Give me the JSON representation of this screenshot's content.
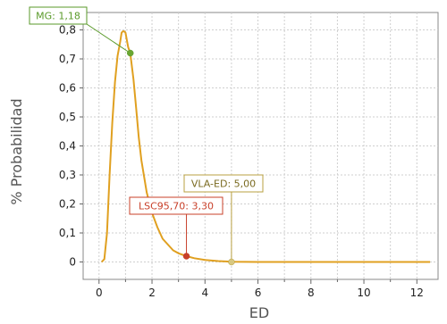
{
  "chart_data": {
    "type": "line",
    "title": "",
    "xlabel": "ED",
    "ylabel": "% Probabilidad",
    "xlim": [
      -0.6,
      12.8
    ],
    "ylim": [
      -0.06,
      0.86
    ],
    "x_ticks": [
      0,
      2,
      4,
      6,
      8,
      10,
      12
    ],
    "y_ticks": [
      0,
      0.1,
      0.2,
      0.3,
      0.4,
      0.5,
      0.6,
      0.7,
      0.8
    ],
    "y_tick_labels": [
      "0",
      "0,1",
      "0,2",
      "0,3",
      "0,4",
      "0,5",
      "0,6",
      "0,7",
      "0,8"
    ],
    "grid": true,
    "legend": "none",
    "series": [
      {
        "x": [
          0.1,
          0.2,
          0.3,
          0.4,
          0.5,
          0.6,
          0.7,
          0.8,
          0.85,
          0.9,
          0.95,
          1.0,
          1.05,
          1.1,
          1.18,
          1.3,
          1.4,
          1.5,
          1.6,
          1.8,
          2.0,
          2.2,
          2.4,
          2.6,
          2.8,
          3.0,
          3.3,
          3.6,
          4.0,
          4.5,
          5.0,
          6.0,
          8.0,
          10.0,
          12.5
        ],
        "y": [
          0.0,
          0.01,
          0.1,
          0.3,
          0.48,
          0.62,
          0.71,
          0.76,
          0.79,
          0.795,
          0.795,
          0.79,
          0.765,
          0.74,
          0.72,
          0.63,
          0.53,
          0.43,
          0.35,
          0.24,
          0.17,
          0.12,
          0.08,
          0.06,
          0.04,
          0.03,
          0.02,
          0.013,
          0.007,
          0.003,
          0.001,
          0.0,
          0.0,
          0.0,
          0.0
        ],
        "color": "#e0a020"
      }
    ],
    "annotations": [
      {
        "label": "MG: 1,18",
        "x": 1.18,
        "y": 0.72,
        "color": "#6aa632",
        "border": "#5a9a2a"
      },
      {
        "label": "LSC95,70: 3,30",
        "x": 3.3,
        "y": 0.02,
        "color": "#c8402a",
        "border": "#c8402a"
      },
      {
        "label": "VLA-ED: 5,00",
        "x": 5.0,
        "y": 0.0,
        "color": "#d8c880",
        "border": "#b8a040"
      }
    ]
  }
}
